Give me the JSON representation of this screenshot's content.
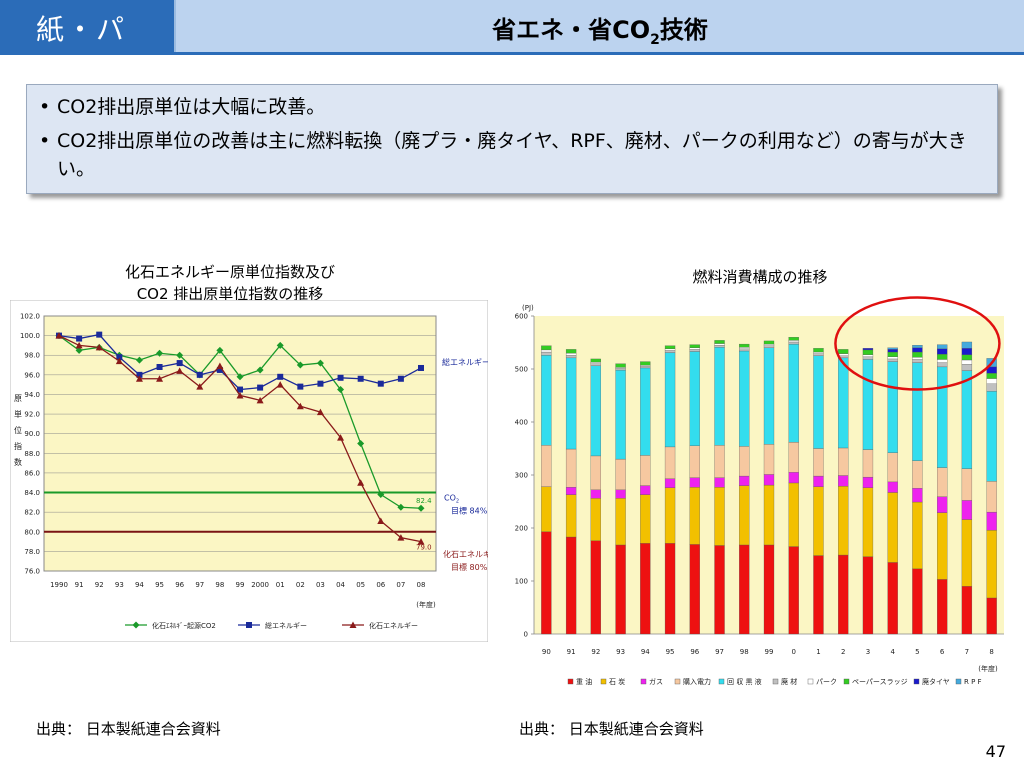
{
  "header": {
    "section": "紙・パ",
    "title_main": "省エネ・省CO",
    "title_sub": "2",
    "title_tail": "技術"
  },
  "bullets": [
    "CO2排出原単位は大幅に改善。",
    "CO2排出原単位の改善は主に燃料転換（廃プラ・廃タイヤ、RPF、廃材、パークの利用など）の寄与が大きい。"
  ],
  "left_chart_title_1": "化石エネルギー原単位指数及び",
  "left_chart_title_2": "CO2 排出原単位指数の推移",
  "right_chart_title": "燃料消費構成の推移",
  "source_left": "出典： 日本製紙連合会資料",
  "source_right": "出典： 日本製紙連合会資料",
  "page_number": "47",
  "chart_data": [
    {
      "type": "line",
      "ylabel": "原単位指数",
      "xunit": "(年度)",
      "ylim": [
        76.0,
        102.0
      ],
      "yticks": [
        "76.0",
        "78.0",
        "80.0",
        "82.0",
        "84.0",
        "86.0",
        "88.0",
        "90.0",
        "92.0",
        "94.0",
        "96.0",
        "98.0",
        "100.0",
        "102.0"
      ],
      "categories": [
        "1990",
        "91",
        "92",
        "93",
        "94",
        "95",
        "96",
        "97",
        "98",
        "99",
        "2000",
        "01",
        "02",
        "03",
        "04",
        "05",
        "06",
        "07",
        "08"
      ],
      "series": [
        {
          "name": "化石ｴﾈﾙｷﾞｰ起源CO2",
          "color": "#1a9a2a",
          "marker": "diamond",
          "values": [
            100.0,
            98.5,
            98.8,
            98.0,
            97.5,
            98.2,
            98.0,
            96.0,
            98.5,
            95.8,
            96.5,
            99.0,
            97.0,
            97.2,
            94.5,
            89.0,
            83.8,
            82.5,
            82.4
          ]
        },
        {
          "name": "総エネルギー",
          "color": "#1a2a9a",
          "marker": "square",
          "values": [
            100.0,
            99.7,
            100.1,
            97.8,
            96.0,
            96.8,
            97.2,
            96.0,
            96.5,
            94.5,
            94.7,
            95.8,
            94.8,
            95.1,
            95.7,
            95.6,
            95.1,
            95.6,
            96.7
          ]
        },
        {
          "name": "化石エネルギー",
          "color": "#8a1a1a",
          "marker": "triangle",
          "values": [
            100.0,
            99.0,
            98.8,
            97.4,
            95.6,
            95.6,
            96.4,
            94.8,
            96.9,
            93.9,
            93.4,
            95.0,
            92.8,
            92.2,
            89.6,
            85.0,
            81.1,
            79.4,
            79.0
          ]
        }
      ],
      "annotations": {
        "total_energy": "総エネルギー",
        "co2_line1": "CO",
        "co2_sub": "2",
        "co2_line2": "目標 84%",
        "co2_value": "82.4",
        "fossil_line1": "化石エネルギー",
        "fossil_line2": "目標 80%",
        "fossil_value": "79.0"
      },
      "targets": [
        {
          "value": 84.0,
          "color": "#1a9a2a"
        },
        {
          "value": 80.0,
          "color": "#7a1414"
        }
      ]
    },
    {
      "type": "bar",
      "stacked": true,
      "yunit": "(PJ)",
      "xunit": "(年度)",
      "ylim": [
        0,
        600
      ],
      "yticks": [
        "0",
        "100",
        "200",
        "300",
        "400",
        "500",
        "600"
      ],
      "categories": [
        "90",
        "91",
        "92",
        "93",
        "94",
        "95",
        "96",
        "97",
        "98",
        "99",
        "0",
        "1",
        "2",
        "3",
        "4",
        "5",
        "6",
        "7",
        "8"
      ],
      "series": [
        {
          "name": "重 油",
          "color": "#ee1111",
          "values": [
            193,
            183,
            176,
            168,
            171,
            171,
            169,
            167,
            168,
            168,
            165,
            148,
            149,
            146,
            135,
            123,
            103,
            90,
            68
          ]
        },
        {
          "name": "石 炭",
          "color": "#f2c000",
          "values": [
            85,
            80,
            80,
            88,
            92,
            105,
            108,
            110,
            112,
            113,
            120,
            130,
            130,
            130,
            132,
            126,
            126,
            126,
            128
          ]
        },
        {
          "name": "ガス",
          "color": "#ee22ee",
          "values": [
            0,
            14,
            16,
            16,
            17,
            17,
            18,
            18,
            18,
            20,
            20,
            20,
            20,
            20,
            20,
            26,
            30,
            36,
            34
          ]
        },
        {
          "name": "購入電力",
          "color": "#f6c8a0",
          "values": [
            78,
            72,
            64,
            58,
            57,
            60,
            60,
            61,
            56,
            57,
            57,
            52,
            52,
            52,
            55,
            52,
            55,
            60,
            58
          ]
        },
        {
          "name": "回 収 黒 液",
          "color": "#33ddee",
          "values": [
            170,
            172,
            170,
            168,
            165,
            178,
            178,
            185,
            180,
            182,
            185,
            175,
            170,
            170,
            172,
            185,
            190,
            185,
            170
          ]
        },
        {
          "name": "廃 材",
          "color": "#c0c0c0",
          "values": [
            6,
            5,
            4,
            3,
            3,
            4,
            4,
            4,
            4,
            4,
            4,
            4,
            4,
            5,
            5,
            6,
            8,
            12,
            14
          ]
        },
        {
          "name": "パーク",
          "color": "#ffffff",
          "values": [
            4,
            4,
            3,
            2,
            2,
            3,
            3,
            3,
            3,
            3,
            3,
            3,
            4,
            4,
            4,
            4,
            6,
            8,
            10
          ]
        },
        {
          "name": "ペーパースラッジ",
          "color": "#33cc22",
          "values": [
            8,
            7,
            6,
            7,
            7,
            6,
            6,
            6,
            6,
            6,
            6,
            7,
            8,
            9,
            9,
            10,
            10,
            10,
            10
          ]
        },
        {
          "name": "廃タイヤ",
          "color": "#1a1acc",
          "values": [
            0,
            0,
            0,
            0,
            0,
            0,
            0,
            0,
            0,
            0,
            0,
            0,
            0,
            3,
            5,
            8,
            10,
            12,
            12
          ]
        },
        {
          "name": "R P F",
          "color": "#44aadd",
          "values": [
            0,
            0,
            0,
            0,
            0,
            0,
            0,
            0,
            0,
            0,
            0,
            0,
            0,
            0,
            3,
            5,
            8,
            12,
            16
          ]
        }
      ]
    }
  ]
}
